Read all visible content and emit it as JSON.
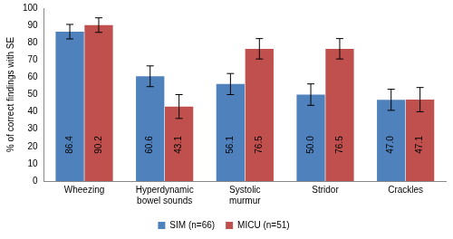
{
  "chart_data": {
    "type": "bar",
    "y_label": "% of correct findings with SE",
    "categories": [
      "Wheezing",
      "Hyperdynamic bowel sounds",
      "Systolic murmur",
      "Stridor",
      "Crackles"
    ],
    "series": [
      {
        "name": "SIM (n=66)",
        "color": "#4F81BD",
        "values": [
          86.4,
          60.6,
          56.1,
          50.0,
          47.0
        ],
        "value_labels": [
          "86.4",
          "60.6",
          "56.1",
          "50.0",
          "47.0"
        ],
        "errors": [
          4.2,
          6.0,
          6.1,
          6.2,
          6.1
        ]
      },
      {
        "name": "MICU (n=51)",
        "color": "#C0504D",
        "values": [
          90.2,
          43.1,
          76.5,
          76.5,
          47.1
        ],
        "value_labels": [
          "90.2",
          "43.1",
          "76.5",
          "76.5",
          "47.1"
        ],
        "errors": [
          4.2,
          6.9,
          5.9,
          5.9,
          7.0
        ]
      }
    ],
    "ylim": [
      0,
      100
    ],
    "yticks": [
      0,
      10,
      20,
      30,
      40,
      50,
      60,
      70,
      80,
      90,
      100
    ],
    "grid": false,
    "legend": "bottom",
    "data_labels": true
  }
}
